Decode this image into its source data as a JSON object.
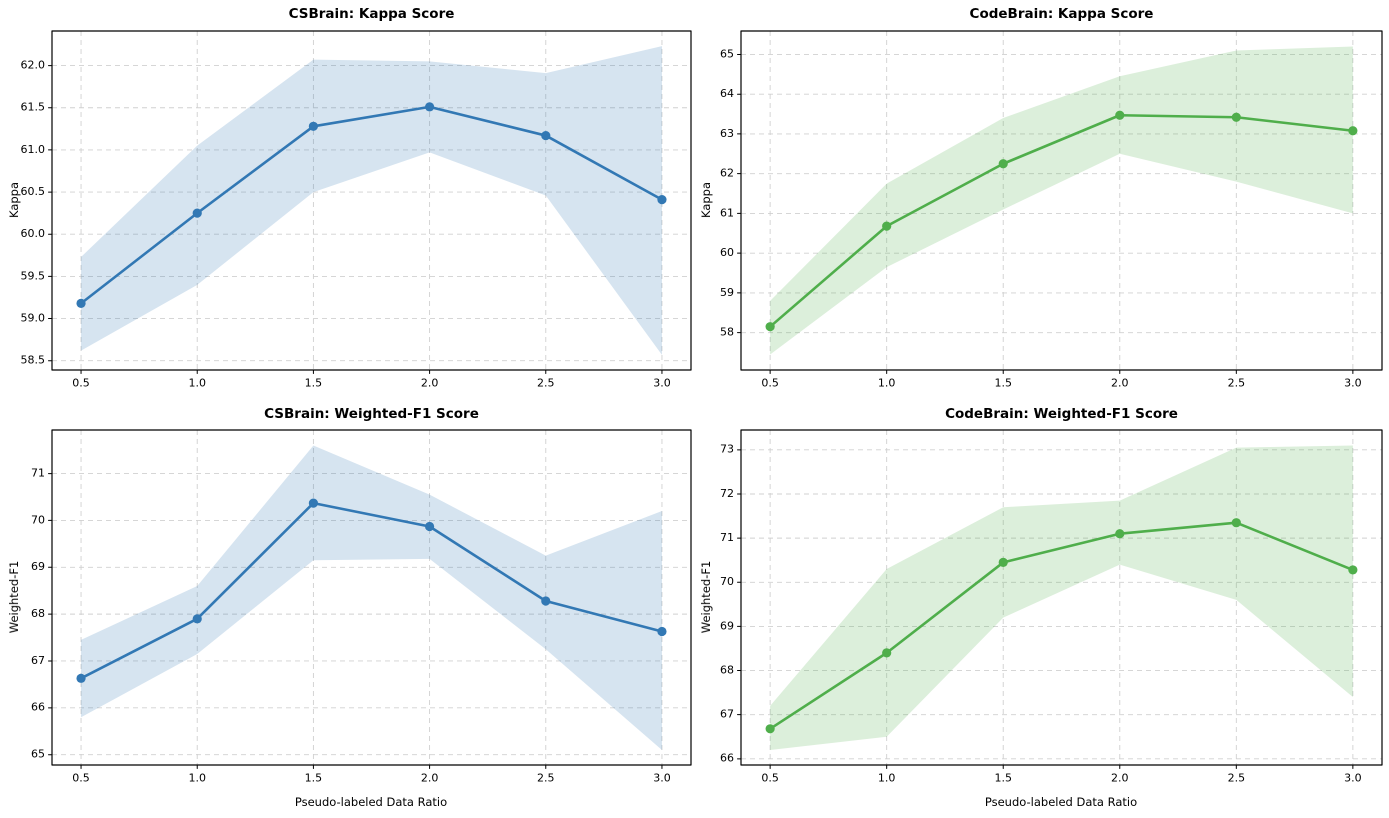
{
  "figure": {
    "background": "#ffffff",
    "grid_color": "#d0d0d0",
    "spine_color": "#000000",
    "tick_label_color": "#000000",
    "blue_accent": "#3278b4",
    "green_accent": "#4fae4b"
  },
  "chart_data": [
    {
      "type": "line",
      "title": "CSBrain: Kappa Score",
      "ylabel": "Kappa",
      "xlabel": "",
      "x": [
        0.5,
        1.0,
        1.5,
        2.0,
        2.5,
        3.0
      ],
      "series": [
        {
          "name": "CSBrain Kappa",
          "values": [
            59.18,
            60.25,
            61.28,
            61.51,
            61.17,
            60.41
          ],
          "band_lower": [
            58.62,
            59.4,
            60.5,
            60.97,
            60.46,
            58.57
          ],
          "band_upper": [
            59.73,
            61.05,
            62.07,
            62.05,
            61.91,
            62.23
          ],
          "color": "#3278b4",
          "band_color": "rgba(50,120,180,0.2)"
        }
      ],
      "xlim": [
        0.375,
        3.125
      ],
      "ylim": [
        58.39,
        62.41
      ],
      "xticks": [
        0.5,
        1.0,
        1.5,
        2.0,
        2.5,
        3.0
      ],
      "xtick_labels": [
        "0.5",
        "1.0",
        "1.5",
        "2.0",
        "2.5",
        "3.0"
      ],
      "yticks": [
        58.5,
        59.0,
        59.5,
        60.0,
        60.5,
        61.0,
        61.5,
        62.0
      ],
      "ytick_labels": [
        "58.5",
        "59.0",
        "59.5",
        "60.0",
        "60.5",
        "61.0",
        "61.5",
        "62.0"
      ],
      "grid": true,
      "legend": null
    },
    {
      "type": "line",
      "title": "CodeBrain: Kappa Score",
      "ylabel": "Kappa",
      "xlabel": "",
      "x": [
        0.5,
        1.0,
        1.5,
        2.0,
        2.5,
        3.0
      ],
      "series": [
        {
          "name": "CodeBrain Kappa",
          "values": [
            58.15,
            60.68,
            62.25,
            63.47,
            63.42,
            63.08
          ],
          "band_lower": [
            57.45,
            59.65,
            61.1,
            62.5,
            61.8,
            61.0
          ],
          "band_upper": [
            58.8,
            61.75,
            63.4,
            64.45,
            65.1,
            65.2
          ],
          "color": "#4fae4b",
          "band_color": "rgba(79,174,75,0.2)"
        }
      ],
      "xlim": [
        0.375,
        3.125
      ],
      "ylim": [
        57.06,
        65.59
      ],
      "xticks": [
        0.5,
        1.0,
        1.5,
        2.0,
        2.5,
        3.0
      ],
      "xtick_labels": [
        "0.5",
        "1.0",
        "1.5",
        "2.0",
        "2.5",
        "3.0"
      ],
      "yticks": [
        58,
        59,
        60,
        61,
        62,
        63,
        64,
        65
      ],
      "ytick_labels": [
        "58",
        "59",
        "60",
        "61",
        "62",
        "63",
        "64",
        "65"
      ],
      "grid": true,
      "legend": null
    },
    {
      "type": "line",
      "title": "CSBrain: Weighted-F1 Score",
      "ylabel": "Weighted-F1",
      "xlabel": "Pseudo-labeled Data Ratio",
      "x": [
        0.5,
        1.0,
        1.5,
        2.0,
        2.5,
        3.0
      ],
      "series": [
        {
          "name": "CSBrain Weighted-F1",
          "values": [
            66.63,
            67.9,
            70.37,
            69.87,
            68.28,
            67.63
          ],
          "band_lower": [
            65.8,
            67.15,
            69.15,
            69.18,
            67.25,
            65.1
          ],
          "band_upper": [
            67.45,
            68.6,
            71.6,
            70.55,
            69.25,
            70.2
          ],
          "color": "#3278b4",
          "band_color": "rgba(50,120,180,0.2)"
        }
      ],
      "xlim": [
        0.375,
        3.125
      ],
      "ylim": [
        64.78,
        71.93
      ],
      "xticks": [
        0.5,
        1.0,
        1.5,
        2.0,
        2.5,
        3.0
      ],
      "xtick_labels": [
        "0.5",
        "1.0",
        "1.5",
        "2.0",
        "2.5",
        "3.0"
      ],
      "yticks": [
        65,
        66,
        67,
        68,
        69,
        70,
        71
      ],
      "ytick_labels": [
        "65",
        "66",
        "67",
        "68",
        "69",
        "70",
        "71"
      ],
      "grid": true,
      "legend": null
    },
    {
      "type": "line",
      "title": "CodeBrain: Weighted-F1 Score",
      "ylabel": "Weighted-F1",
      "xlabel": "Pseudo-labeled Data Ratio",
      "x": [
        0.5,
        1.0,
        1.5,
        2.0,
        2.5,
        3.0
      ],
      "series": [
        {
          "name": "CodeBrain Weighted-F1",
          "values": [
            66.68,
            68.4,
            70.45,
            71.1,
            71.35,
            70.28
          ],
          "band_lower": [
            66.2,
            66.5,
            69.2,
            70.4,
            69.6,
            67.4
          ],
          "band_upper": [
            67.2,
            70.3,
            71.7,
            71.85,
            73.05,
            73.1
          ],
          "color": "#4fae4b",
          "band_color": "rgba(79,174,75,0.2)"
        }
      ],
      "xlim": [
        0.375,
        3.125
      ],
      "ylim": [
        65.86,
        73.45
      ],
      "xticks": [
        0.5,
        1.0,
        1.5,
        2.0,
        2.5,
        3.0
      ],
      "xtick_labels": [
        "0.5",
        "1.0",
        "1.5",
        "2.0",
        "2.5",
        "3.0"
      ],
      "yticks": [
        66,
        67,
        68,
        69,
        70,
        71,
        72,
        73
      ],
      "ytick_labels": [
        "66",
        "67",
        "68",
        "69",
        "70",
        "71",
        "72",
        "73"
      ],
      "grid": true,
      "legend": null
    }
  ]
}
